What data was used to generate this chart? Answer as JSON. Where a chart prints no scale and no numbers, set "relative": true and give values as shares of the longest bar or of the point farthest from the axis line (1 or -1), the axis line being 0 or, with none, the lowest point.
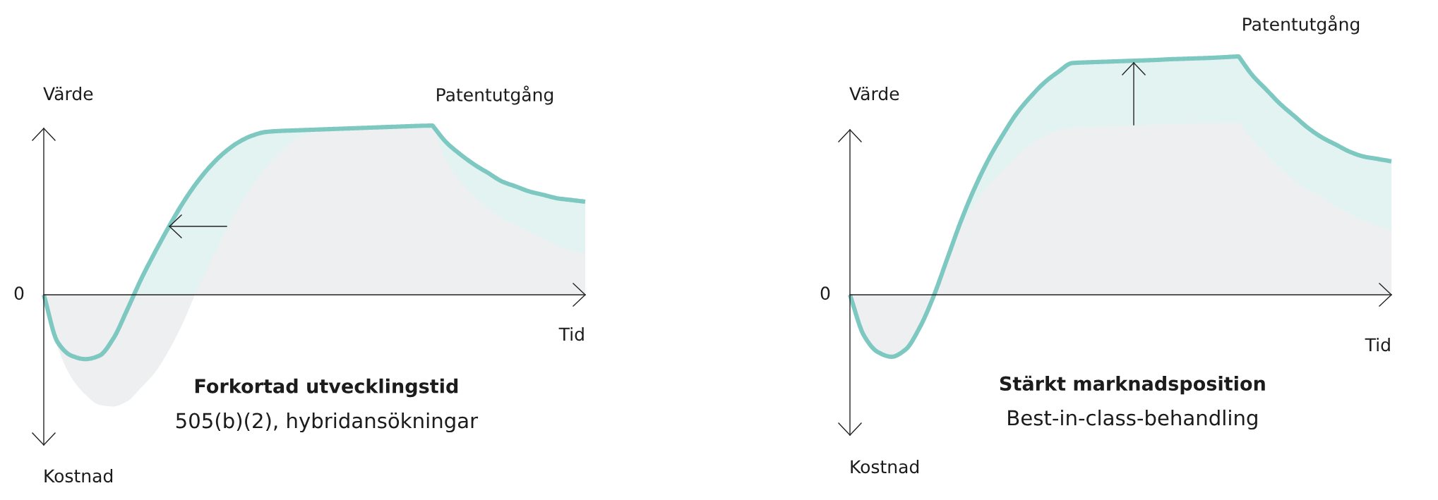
{
  "chart_data": [
    {
      "type": "area",
      "relative": true,
      "title": "Forkortad utvecklingstid",
      "subtitle": "505(b)(2), hybridansökningar",
      "xlabel": "Tid",
      "ylabel": "Värde",
      "annotations": [
        "0",
        "Patentutgång",
        "Kostnad"
      ],
      "categories": [
        null,
        null,
        null,
        null,
        null,
        null,
        null,
        null,
        null,
        null,
        null,
        null,
        null,
        null,
        null,
        null,
        null,
        null,
        null,
        null,
        null,
        null,
        null,
        null,
        null,
        null,
        null,
        null,
        null,
        null,
        null,
        null,
        null,
        null,
        null,
        null,
        null,
        null,
        null,
        null
      ],
      "series": [
        {
          "color": "#7ec8c2",
          "line_style": "solid",
          "values": [
            0,
            -0.28,
            -0.36,
            -0.38,
            -0.36,
            -0.26,
            -0.09,
            0.09,
            0.25,
            0.4,
            0.54,
            0.66,
            0.76,
            0.84,
            0.9,
            0.94,
            0.962,
            0.968,
            0.971,
            0.974,
            0.977,
            0.98,
            0.983,
            0.986,
            0.989,
            0.992,
            0.995,
            0.998,
            1,
            0.9,
            0.83,
            0.77,
            0.72,
            0.67,
            0.64,
            0.61,
            0.59,
            0.57,
            0.56,
            0.55
          ]
        },
        {
          "color": "#eeeff0",
          "values": [
            0,
            -0.31,
            -0.49,
            -0.59,
            -0.65,
            -0.66,
            -0.63,
            -0.55,
            -0.46,
            -0.33,
            -0.17,
            0.02,
            0.19,
            0.36,
            0.51,
            0.64,
            0.75,
            0.84,
            0.91,
            0.95,
            0.977,
            0.98,
            0.983,
            0.986,
            0.989,
            0.992,
            0.995,
            0.998,
            1,
            0.79,
            0.67,
            0.58,
            0.51,
            0.45,
            0.41,
            0.37,
            0.33,
            0.29,
            0.26,
            0.24
          ]
        }
      ]
    },
    {
      "type": "area",
      "relative": true,
      "title": "Stärkt marknadsposition",
      "subtitle": "Best-in-class-behandling",
      "xlabel": "Tid",
      "ylabel": "Värde",
      "annotations": [
        "0",
        "Patentutgång",
        "Kostnad"
      ],
      "categories": [
        null,
        null,
        null,
        null,
        null,
        null,
        null,
        null,
        null,
        null,
        null,
        null,
        null,
        null,
        null,
        null,
        null,
        null,
        null,
        null,
        null,
        null,
        null,
        null,
        null,
        null,
        null,
        null,
        null,
        null,
        null,
        null,
        null,
        null,
        null,
        null,
        null,
        null,
        null,
        null
      ],
      "series": [
        {
          "color": "#7ec8c2",
          "line_style": "solid",
          "values": [
            0,
            -0.17,
            -0.24,
            -0.26,
            -0.23,
            -0.14,
            -0.01,
            0.15,
            0.31,
            0.45,
            0.57,
            0.67,
            0.76,
            0.83,
            0.89,
            0.935,
            0.972,
            0.975,
            0.977,
            0.979,
            0.981,
            0.983,
            0.985,
            0.988,
            0.99,
            0.992,
            0.994,
            0.997,
            1,
            0.92,
            0.86,
            0.8,
            0.75,
            0.7,
            0.66,
            0.63,
            0.6,
            0.58,
            0.57,
            0.56
          ]
        },
        {
          "color": "#eeeff0",
          "values": [
            0,
            -0.17,
            -0.24,
            -0.26,
            -0.23,
            -0.14,
            -0.01,
            0.15,
            0.29,
            0.38,
            0.46,
            0.52,
            0.58,
            0.63,
            0.665,
            0.69,
            0.7,
            0.703,
            0.705,
            0.707,
            0.709,
            0.711,
            0.713,
            0.715,
            0.717,
            0.718,
            0.72,
            0.721,
            0.722,
            0.65,
            0.59,
            0.53,
            0.48,
            0.44,
            0.41,
            0.37,
            0.34,
            0.31,
            0.29,
            0.27
          ]
        }
      ]
    }
  ]
}
